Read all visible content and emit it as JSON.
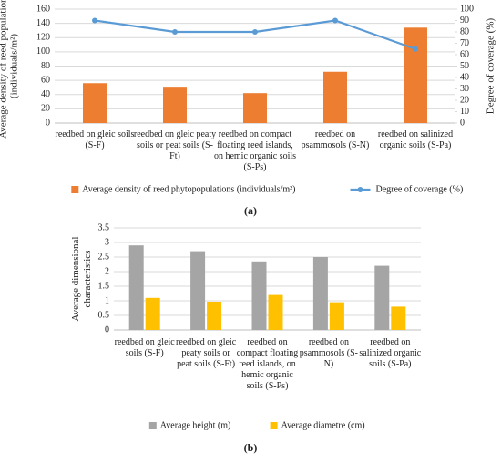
{
  "chart_data": [
    {
      "type": "bar",
      "caption": "(a)",
      "y_label": "Average density of reed populations (individuals/m²)",
      "y2_label": "Degree of coverage (%)",
      "categories": [
        "reedbed on gleic soils (S-F)",
        "reedbed on gleic peaty soils or peat soils (S-Ft)",
        "reedbed on compact floating reed islands, on hemic organic soils (S-Ps)",
        "reedbed on psammosols (S-N)",
        "reedbed on salinized organic soils (S-Pa)"
      ],
      "series": [
        {
          "name": "Average density of reed phytopopulations (individuals/m²)",
          "color": "#ED7D31",
          "type": "bar",
          "values": [
            56,
            51,
            42,
            72,
            134
          ]
        },
        {
          "name": "Degree of coverage (%)",
          "color": "#5B9BD5",
          "type": "line",
          "axis": "y2",
          "values": [
            90,
            80,
            80,
            90,
            65
          ]
        }
      ],
      "ylim": [
        0,
        160
      ],
      "yticks": [
        0,
        20,
        40,
        60,
        80,
        100,
        120,
        140,
        160
      ],
      "y2lim": [
        0,
        100
      ],
      "y2ticks": [
        0,
        10,
        20,
        30,
        40,
        50,
        60,
        70,
        80,
        90,
        100
      ],
      "grid": true,
      "legend": "bottom"
    },
    {
      "type": "bar",
      "caption": "(b)",
      "y_label": "Average dimensional characteristics",
      "categories": [
        "reedbed on gleic soils (S-F)",
        "reedbed on gleic peaty soils or peat soils (S-Ft)",
        "reedbed on compact floating reed islands, on hemic organic soils (S-Ps)",
        "reedbed on psammosols (S-N)",
        "reedbed on salinized organic soils (S-Pa)"
      ],
      "series": [
        {
          "name": "Average height (m)",
          "color": "#A5A5A5",
          "type": "bar",
          "values": [
            2.9,
            2.7,
            2.35,
            2.5,
            2.2
          ]
        },
        {
          "name": "Average diametre (cm)",
          "color": "#FFC000",
          "type": "bar",
          "values": [
            1.1,
            0.97,
            1.2,
            0.95,
            0.8
          ]
        }
      ],
      "ylim": [
        0,
        3.5
      ],
      "yticks": [
        0,
        0.5,
        1,
        1.5,
        2,
        2.5,
        3,
        3.5
      ],
      "grid": true,
      "legend": "bottom"
    }
  ]
}
